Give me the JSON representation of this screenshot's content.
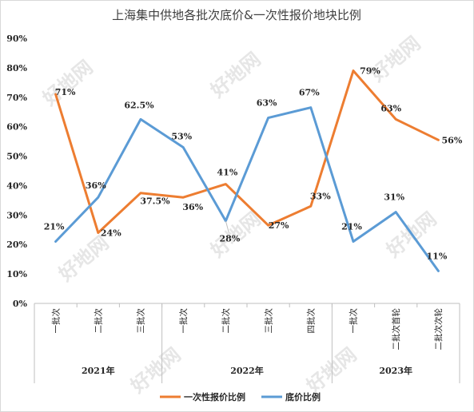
{
  "chart_data": {
    "type": "line",
    "title": "上海集中供地各批次底价&一次性报价地块比例",
    "categories": [
      "一批次",
      "二批次",
      "三批次",
      "一批次",
      "二批次",
      "三批次",
      "四批次",
      "一批次",
      "二批次首轮",
      "二批次次轮"
    ],
    "groups": [
      {
        "label": "2021年",
        "count": 3
      },
      {
        "label": "2022年",
        "count": 4
      },
      {
        "label": "2023年",
        "count": 3
      }
    ],
    "ylim": [
      0,
      90
    ],
    "yticks": [
      "0%",
      "10%",
      "20%",
      "30%",
      "40%",
      "50%",
      "60%",
      "70%",
      "80%",
      "90%"
    ],
    "series": [
      {
        "name": "一次性报价比例",
        "color": "#ed7d31",
        "values": [
          71,
          24,
          37.5,
          36,
          40.5,
          26.5,
          33,
          79,
          62.5,
          55.5
        ],
        "labels": [
          "71%",
          "24%",
          "37.5%",
          "36%",
          "41%",
          "27%",
          "33%",
          "79%",
          "63%",
          "56%"
        ]
      },
      {
        "name": "底价比例",
        "color": "#5b9bd5",
        "values": [
          21,
          36,
          62.5,
          53,
          28,
          63,
          66.5,
          21,
          31,
          11
        ],
        "labels": [
          "21%",
          "36%",
          "62.5%",
          "53%",
          "28%",
          "63%",
          "67%",
          "21%",
          "31%",
          "11%"
        ]
      }
    ],
    "legend_position": "bottom",
    "grid": false
  },
  "watermark": "好地网"
}
